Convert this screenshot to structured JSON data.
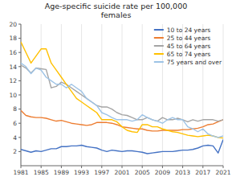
{
  "chart_data": {
    "type": "line",
    "title": "Age-specific suicide rate per 100,000\nfemales",
    "x": [
      1981,
      1982,
      1983,
      1984,
      1985,
      1986,
      1987,
      1988,
      1989,
      1990,
      1991,
      1992,
      1993,
      1994,
      1995,
      1996,
      1997,
      1998,
      1999,
      2000,
      2001,
      2002,
      2003,
      2004,
      2005,
      2006,
      2007,
      2008,
      2009,
      2010,
      2011,
      2012,
      2013,
      2014,
      2015,
      2016,
      2017,
      2018,
      2019,
      2020,
      2021
    ],
    "series": [
      {
        "name": "10 to 24 years",
        "color": "#4472C4",
        "values": [
          2.3,
          2.1,
          1.9,
          2.1,
          2.0,
          2.2,
          2.4,
          2.4,
          2.7,
          2.7,
          2.8,
          2.8,
          2.9,
          2.7,
          2.6,
          2.5,
          2.2,
          2.0,
          2.2,
          2.1,
          2.0,
          2.1,
          2.1,
          2.0,
          1.9,
          1.7,
          1.8,
          1.9,
          2.0,
          2.0,
          2.0,
          2.1,
          2.2,
          2.2,
          2.3,
          2.5,
          2.8,
          2.9,
          2.8,
          1.8,
          3.7
        ]
      },
      {
        "name": "25 to 44 years",
        "color": "#ED7D31",
        "values": [
          7.8,
          7.1,
          6.9,
          6.8,
          6.8,
          6.7,
          6.5,
          6.3,
          6.4,
          6.2,
          6.0,
          5.9,
          5.8,
          5.7,
          5.8,
          6.1,
          6.1,
          6.1,
          6.0,
          5.8,
          5.5,
          5.4,
          5.3,
          5.2,
          5.2,
          5.0,
          4.9,
          4.9,
          5.0,
          5.0,
          5.0,
          5.0,
          5.1,
          5.1,
          5.2,
          5.3,
          5.5,
          5.8,
          5.9,
          6.2,
          6.5
        ]
      },
      {
        "name": "45 to 64 years",
        "color": "#A5A5A5",
        "values": [
          14.2,
          13.8,
          13.1,
          13.8,
          13.7,
          13.6,
          11.0,
          11.2,
          11.8,
          11.5,
          11.0,
          10.5,
          10.0,
          9.5,
          9.0,
          8.5,
          8.3,
          8.3,
          8.0,
          7.5,
          7.2,
          7.1,
          6.8,
          6.5,
          6.5,
          6.8,
          6.5,
          6.3,
          6.8,
          6.5,
          6.5,
          6.7,
          6.5,
          6.2,
          6.5,
          6.3,
          6.5,
          6.5,
          6.5,
          6.3,
          6.5
        ]
      },
      {
        "name": "65 to 74 years",
        "color": "#FFC000",
        "values": [
          17.5,
          16.0,
          14.5,
          15.5,
          16.5,
          16.5,
          14.5,
          13.5,
          12.5,
          11.5,
          10.5,
          9.5,
          9.0,
          8.5,
          8.0,
          7.5,
          6.5,
          6.5,
          6.5,
          6.2,
          5.5,
          5.0,
          4.8,
          4.7,
          5.8,
          5.8,
          5.5,
          5.5,
          5.2,
          5.0,
          4.8,
          4.7,
          4.5,
          4.3,
          4.2,
          4.1,
          4.2,
          4.3,
          4.2,
          4.0,
          3.9
        ]
      },
      {
        "name": "75 years and over",
        "color": "#9DC3E6",
        "values": [
          14.5,
          14.0,
          13.0,
          13.8,
          13.5,
          12.5,
          12.0,
          11.5,
          11.5,
          11.0,
          11.5,
          11.0,
          10.5,
          9.5,
          9.0,
          8.5,
          7.5,
          7.2,
          6.8,
          6.5,
          6.5,
          6.5,
          6.3,
          6.5,
          7.2,
          6.8,
          6.5,
          6.3,
          6.0,
          6.5,
          6.8,
          6.5,
          6.5,
          5.5,
          5.2,
          4.8,
          5.2,
          4.5,
          4.2,
          4.0,
          4.2
        ]
      }
    ],
    "xlim": [
      1981,
      2021
    ],
    "xticks": [
      1981,
      1985,
      1989,
      1993,
      1997,
      2001,
      2005,
      2009,
      2013,
      2017,
      2021
    ],
    "ylim": [
      0,
      20
    ],
    "yticks": [
      2,
      4,
      6,
      8,
      10,
      12,
      14,
      16,
      18,
      20
    ],
    "grid": "x",
    "legend": "upper right"
  }
}
